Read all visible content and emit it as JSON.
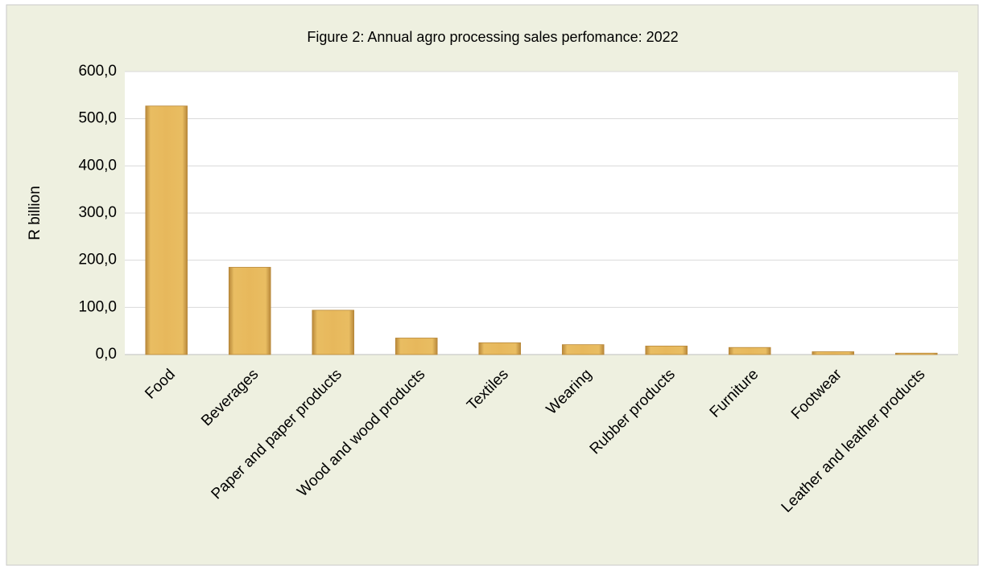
{
  "chart_data": {
    "type": "bar",
    "title": "Figure 2: Annual agro processing sales perfomance: 2022",
    "y_label": "R billion",
    "categories": [
      "Food",
      "Beverages",
      "Paper and paper products",
      "Wood and wood products",
      "Textiles",
      "Wearing",
      "Rubber products",
      "Furniture",
      "Footwear",
      "Leather and leather products"
    ],
    "values": [
      527,
      185,
      94,
      35,
      25,
      21,
      18,
      15,
      6,
      3
    ],
    "color": "#e3b457",
    "ylim": [
      0,
      600
    ],
    "yticks": [
      {
        "value": 0,
        "label": "0,0"
      },
      {
        "value": 100,
        "label": "100,0"
      },
      {
        "value": 200,
        "label": "200,0"
      },
      {
        "value": 300,
        "label": "300,0"
      },
      {
        "value": 400,
        "label": "400,0"
      },
      {
        "value": 500,
        "label": "500,0"
      },
      {
        "value": 600,
        "label": "600,0"
      }
    ],
    "grid": true
  }
}
